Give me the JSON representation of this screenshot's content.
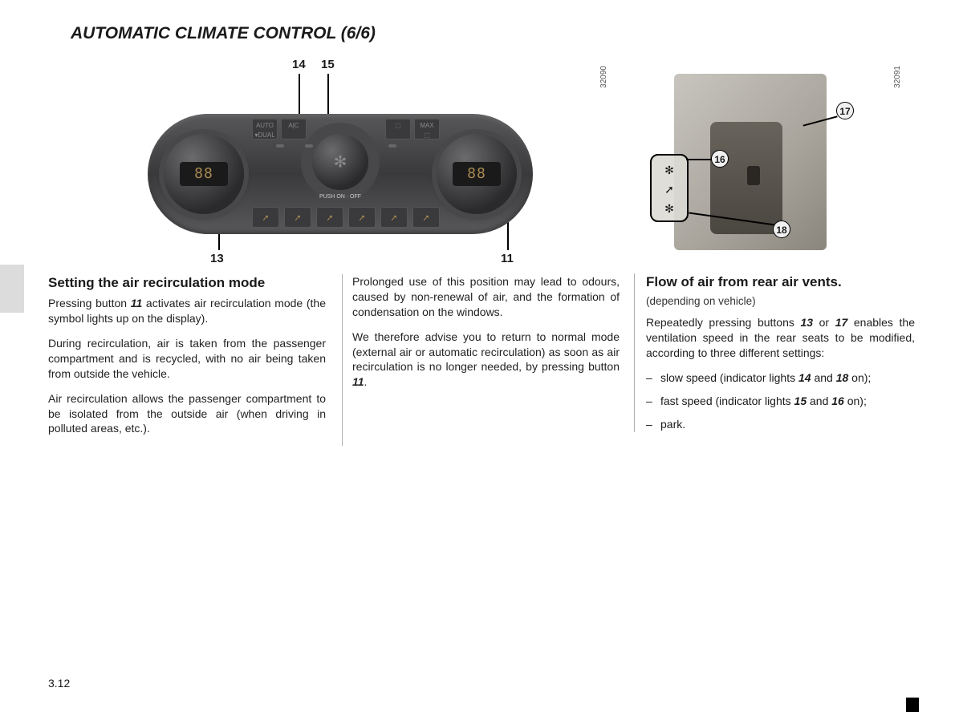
{
  "page": {
    "title": "AUTOMATIC CLIMATE CONTROL (6/6)",
    "number": "3.12"
  },
  "figure_main": {
    "id": "32090",
    "display_left": "88",
    "display_right": "88",
    "center_label": "PUSH ON · OFF",
    "top_buttons": [
      "AUTO\n▾DUAL",
      "A|C",
      "⬚",
      "MAX\n⬚"
    ],
    "bottom_icons": [
      "➚",
      "➚",
      "➚",
      "➚",
      "➚",
      "➚"
    ],
    "callouts": {
      "c14": "14",
      "c15": "15",
      "c13": "13",
      "c11": "11"
    }
  },
  "figure_rear": {
    "id": "32091",
    "callouts": {
      "c16": "16",
      "c17": "17",
      "c18": "18"
    },
    "vent_icons": "✻\n➚\n✻"
  },
  "col1": {
    "heading": "Setting the air recirculation mode",
    "p1a": "Pressing button ",
    "p1ref": "11",
    "p1b": " activates air recirculation mode (the symbol lights up on the display).",
    "p2": "During recirculation, air is taken from the passenger compartment and is recycled, with no air being taken from outside the vehicle.",
    "p3": "Air recirculation allows the passenger compartment to be isolated from the outside air (when driving in polluted areas, etc.)."
  },
  "col2": {
    "p1": "Prolonged use of this position may lead to odours, caused by non-renewal of air, and the formation of condensation on the windows.",
    "p2a": "We therefore advise you to return to normal mode (external air or automatic recirculation) as soon as air recirculation is no longer needed, by pressing button ",
    "p2ref": "11",
    "p2b": "."
  },
  "col3": {
    "heading": "Flow of air from rear air vents.",
    "subnote": "(depending on vehicle)",
    "p1a": "Repeatedly pressing buttons ",
    "p1ref1": "13",
    "p1mid": " or ",
    "p1ref2": "17",
    "p1b": " enables the ventilation speed in the rear seats to be modified, according to three different settings:",
    "li1a": "slow speed (indicator lights ",
    "li1ref1": "14",
    "li1mid": " and ",
    "li1ref2": "18",
    "li1b": " on);",
    "li2a": "fast speed (indicator lights ",
    "li2ref1": "15",
    "li2mid": " and ",
    "li2ref2": "16",
    "li2b": " on);",
    "li3": "park."
  },
  "colors": {
    "text": "#1a1a1a",
    "grey_tab": "#dcdcdc",
    "col_border": "#b0b0b0"
  }
}
